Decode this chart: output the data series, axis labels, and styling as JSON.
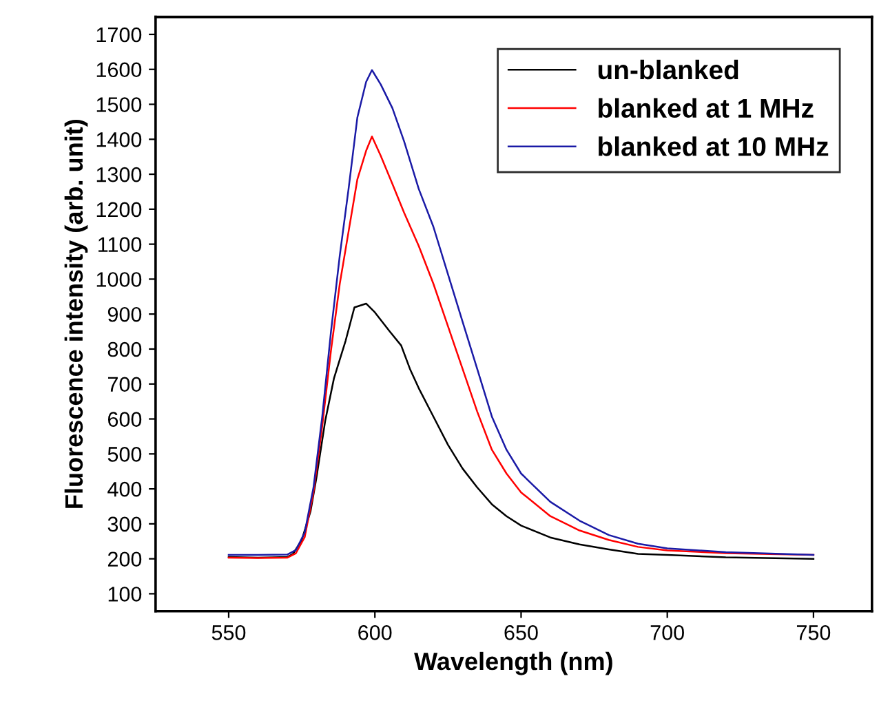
{
  "chart_data": {
    "type": "line",
    "xlabel": "Wavelength (nm)",
    "ylabel": "Fluorescence intensity (arb. unit)",
    "xlim": [
      525,
      770
    ],
    "xticks": [
      550,
      600,
      650,
      700,
      750
    ],
    "ylim": [
      50,
      1750
    ],
    "yticks": [
      100,
      200,
      300,
      400,
      500,
      600,
      700,
      800,
      900,
      1000,
      1100,
      1200,
      1300,
      1400,
      1500,
      1600,
      1700
    ],
    "legend": "top right",
    "grid": false,
    "marker": "none",
    "line_style": "solid",
    "series": [
      {
        "name": "un-blanked",
        "color": "#000000",
        "x": [
          550,
          560,
          570,
          572,
          575,
          578,
          580,
          583,
          586,
          590,
          593,
          597,
          600,
          605,
          609,
          612,
          615,
          620,
          625,
          630,
          635,
          640,
          645,
          650,
          660,
          670,
          680,
          690,
          700,
          720,
          750
        ],
        "values": [
          205,
          203,
          205,
          214,
          254,
          336,
          431,
          594,
          716,
          824,
          919,
          930,
          905,
          851,
          810,
          743,
          688,
          607,
          526,
          458,
          404,
          356,
          322,
          295,
          261,
          241,
          227,
          214,
          211,
          204,
          200
        ]
      },
      {
        "name": "blanked at 1 MHz",
        "color": "#ff0000",
        "x": [
          550,
          560,
          570,
          573,
          576,
          579,
          582,
          585,
          588,
          591,
          594,
          597,
          599,
          602,
          606,
          610,
          615,
          620,
          625,
          630,
          635,
          640,
          645,
          650,
          660,
          670,
          680,
          690,
          700,
          720,
          750
        ],
        "values": [
          203,
          202,
          203,
          216,
          262,
          390,
          580,
          797,
          987,
          1136,
          1285,
          1367,
          1408,
          1353,
          1272,
          1190,
          1095,
          987,
          865,
          743,
          621,
          512,
          444,
          390,
          322,
          281,
          254,
          234,
          224,
          216,
          211
        ]
      },
      {
        "name": "blanked at 10 MHz",
        "color": "#1a1aa6",
        "x": [
          550,
          560,
          570,
          573,
          576,
          579,
          582,
          585,
          588,
          591,
          594,
          597,
          599,
          602,
          606,
          610,
          615,
          620,
          625,
          630,
          635,
          640,
          645,
          650,
          660,
          670,
          680,
          690,
          700,
          720,
          750
        ],
        "values": [
          211,
          211,
          212,
          225,
          275,
          404,
          607,
          851,
          1068,
          1258,
          1462,
          1564,
          1598,
          1557,
          1489,
          1394,
          1258,
          1150,
          1014,
          878,
          743,
          607,
          512,
          444,
          363,
          309,
          268,
          243,
          230,
          219,
          211
        ]
      }
    ]
  }
}
